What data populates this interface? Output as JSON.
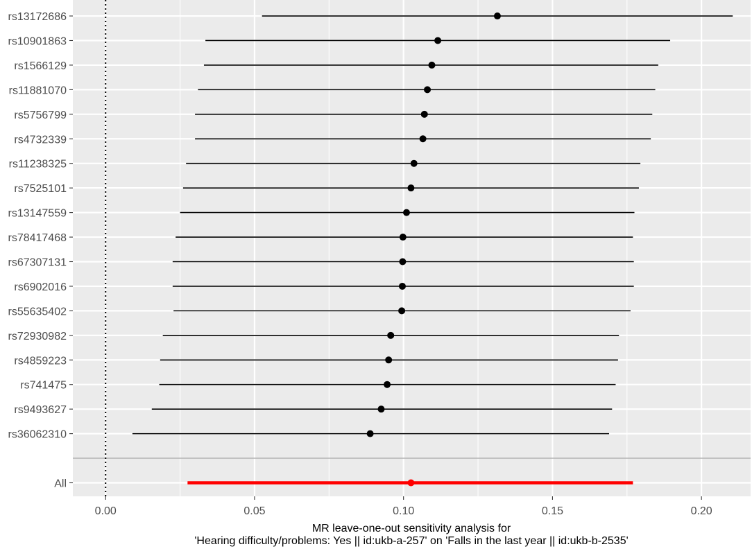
{
  "chart_data": {
    "type": "forest",
    "title": "",
    "xlabel_lines": [
      "MR leave-one-out sensitivity analysis for",
      "'Hearing difficulty/problems: Yes || id:ukb-a-257' on 'Falls in the last year || id:ukb-b-2535'"
    ],
    "xlim": [
      -0.011,
      0.2165
    ],
    "x_ticks": [
      0.0,
      0.05,
      0.1,
      0.15,
      0.2
    ],
    "x_tick_labels": [
      "0.00",
      "0.05",
      "0.10",
      "0.15",
      "0.20"
    ],
    "reference_line_x": 0,
    "grid": true,
    "colors": {
      "panel_background": "#ebebeb",
      "grid": "#ffffff",
      "snp": "#000000",
      "overall": "#ff0000",
      "separator": "#b3b3b3"
    },
    "snps": [
      {
        "label": "rs13172686",
        "estimate": 0.1315,
        "lower": 0.0525,
        "upper": 0.2105
      },
      {
        "label": "rs10901863",
        "estimate": 0.1115,
        "lower": 0.0335,
        "upper": 0.1895
      },
      {
        "label": "rs1566129",
        "estimate": 0.1095,
        "lower": 0.033,
        "upper": 0.1855
      },
      {
        "label": "rs11881070",
        "estimate": 0.108,
        "lower": 0.031,
        "upper": 0.1845
      },
      {
        "label": "rs5756799",
        "estimate": 0.107,
        "lower": 0.03,
        "upper": 0.1835
      },
      {
        "label": "rs4732339",
        "estimate": 0.1065,
        "lower": 0.03,
        "upper": 0.183
      },
      {
        "label": "rs11238325",
        "estimate": 0.1035,
        "lower": 0.027,
        "upper": 0.1795
      },
      {
        "label": "rs7525101",
        "estimate": 0.1025,
        "lower": 0.026,
        "upper": 0.179
      },
      {
        "label": "rs13147559",
        "estimate": 0.101,
        "lower": 0.025,
        "upper": 0.1775
      },
      {
        "label": "rs78417468",
        "estimate": 0.0998,
        "lower": 0.0235,
        "upper": 0.177
      },
      {
        "label": "rs67307131",
        "estimate": 0.0997,
        "lower": 0.0225,
        "upper": 0.1773
      },
      {
        "label": "rs6902016",
        "estimate": 0.0996,
        "lower": 0.0225,
        "upper": 0.1773
      },
      {
        "label": "rs55635402",
        "estimate": 0.0994,
        "lower": 0.0228,
        "upper": 0.1762
      },
      {
        "label": "rs72930982",
        "estimate": 0.0957,
        "lower": 0.0192,
        "upper": 0.1723
      },
      {
        "label": "rs4859223",
        "estimate": 0.095,
        "lower": 0.0183,
        "upper": 0.172
      },
      {
        "label": "rs741475",
        "estimate": 0.0945,
        "lower": 0.018,
        "upper": 0.1712
      },
      {
        "label": "rs9493627",
        "estimate": 0.0925,
        "lower": 0.0155,
        "upper": 0.17
      },
      {
        "label": "rs36062310",
        "estimate": 0.0888,
        "lower": 0.009,
        "upper": 0.169
      }
    ],
    "overall": {
      "label": "All",
      "estimate": 0.1025,
      "lower": 0.0275,
      "upper": 0.177
    }
  }
}
